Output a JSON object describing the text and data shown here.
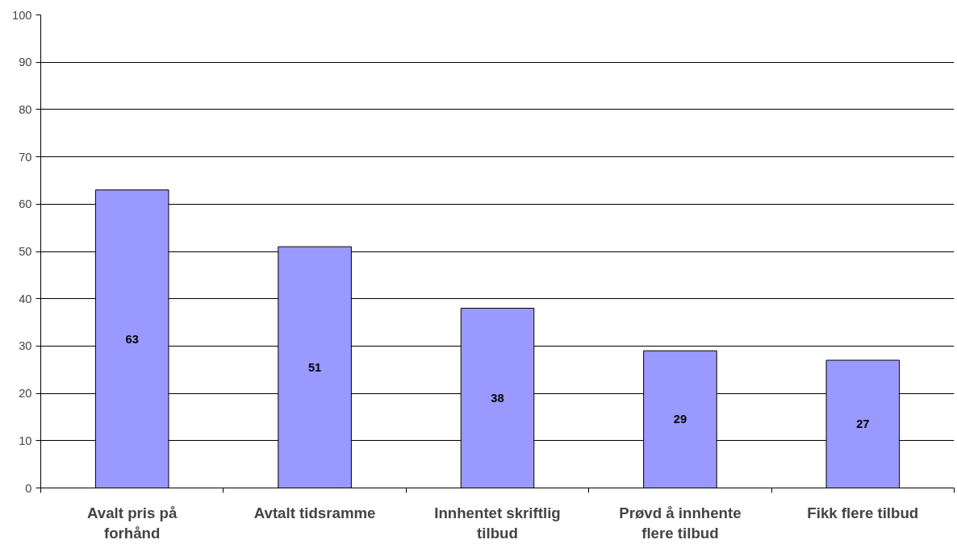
{
  "chart_data": {
    "type": "bar",
    "categories": [
      "Avalt pris på forhånd",
      "Avtalt tidsramme",
      "Innhentet skriftlig tilbud",
      "Prøvd å innhente flere tilbud",
      "Fikk flere tilbud"
    ],
    "values": [
      63,
      51,
      38,
      29,
      27
    ],
    "color": "#9999ff",
    "ylim": [
      0,
      100
    ],
    "yticks": [
      0,
      10,
      20,
      30,
      40,
      50,
      60,
      70,
      80,
      90,
      100
    ],
    "grid": "y",
    "data_labels": true
  }
}
